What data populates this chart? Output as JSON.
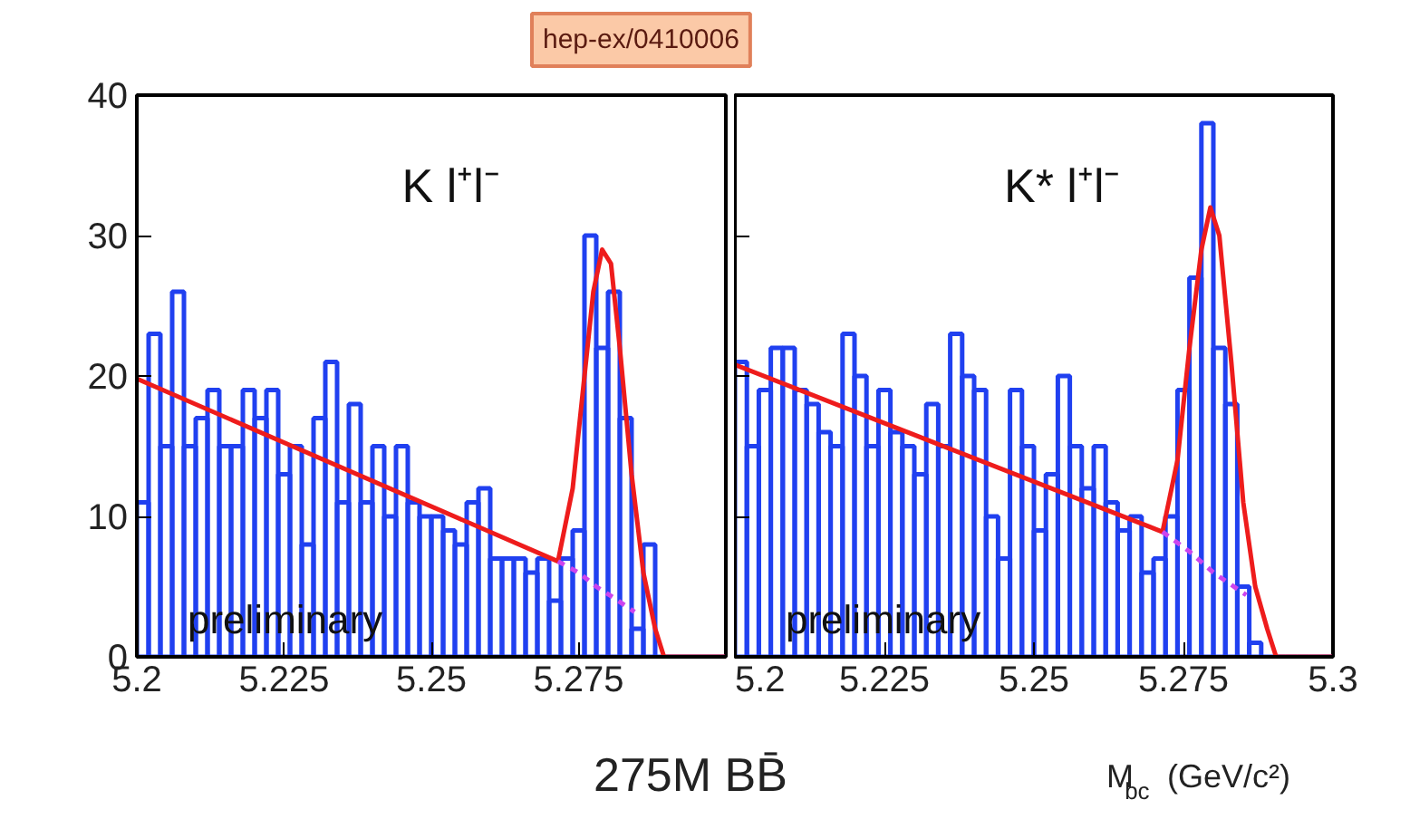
{
  "chart_data": [
    {
      "type": "histogram",
      "title": "K l⁺l⁻",
      "xlabel": "275M BB̄",
      "xlim": [
        5.2,
        5.3
      ],
      "ylim": [
        0,
        40
      ],
      "xticks": [
        5.2,
        5.225,
        5.25,
        5.275,
        {
          "value": 5.3,
          "label": null
        }
      ],
      "yticks": [
        0,
        10,
        20,
        30,
        40
      ],
      "annotations": [
        "preliminary",
        "hep-ex/0410006"
      ],
      "series": [
        {
          "type": "histogram",
          "color": "#2040f0",
          "bins": [
            5.2,
            5.202,
            5.204,
            5.206,
            5.208,
            5.21,
            5.212,
            5.214,
            5.216,
            5.218,
            5.22,
            5.222,
            5.224,
            5.226,
            5.228,
            5.23,
            5.232,
            5.234,
            5.236,
            5.238,
            5.24,
            5.242,
            5.244,
            5.246,
            5.248,
            5.25,
            5.252,
            5.254,
            5.256,
            5.258,
            5.26,
            5.262,
            5.264,
            5.266,
            5.268,
            5.27,
            5.272,
            5.274,
            5.276,
            5.278,
            5.28,
            5.282,
            5.284,
            5.286,
            5.288,
            5.29,
            5.292,
            5.294,
            5.296,
            5.298,
            5.3
          ],
          "values": [
            11,
            23,
            15,
            26,
            15,
            17,
            19,
            15,
            15,
            19,
            17,
            19,
            13,
            15,
            8,
            17,
            21,
            11,
            18,
            11,
            15,
            10,
            15,
            11,
            10,
            10,
            9,
            8,
            11,
            12,
            7,
            7,
            7,
            6,
            7,
            4,
            7,
            9,
            30,
            22,
            26,
            17,
            2,
            8,
            0,
            0,
            0,
            0,
            0,
            0
          ]
        },
        {
          "type": "line",
          "color": "#ee1c1c",
          "x": [
            5.2,
            5.2715,
            5.274,
            5.276,
            5.2775,
            5.279,
            5.2805,
            5.282,
            5.284,
            5.286,
            5.288,
            5.2895,
            5.3
          ],
          "values": [
            19.8,
            6.8,
            12,
            20,
            26,
            29,
            28,
            22,
            13,
            6,
            2,
            0,
            0
          ]
        },
        {
          "type": "line",
          "color": "#cc44ee",
          "line_style": "dashed",
          "x": [
            5.2715,
            5.275,
            5.278,
            5.281,
            5.2845
          ],
          "values": [
            6.8,
            6,
            5,
            4.2,
            3.2
          ]
        }
      ]
    },
    {
      "type": "histogram",
      "title": "K* l⁺l⁻",
      "xlabel": "M$_{bc}$ (GeV/c²)",
      "xlim": [
        5.2,
        5.3
      ],
      "ylim": [
        0,
        40
      ],
      "xticks": [
        5.2,
        5.225,
        5.25,
        5.275,
        5.3
      ],
      "yticks": [
        0,
        10,
        20,
        30,
        40
      ],
      "tick_labels": "x",
      "annotations": [
        "preliminary"
      ],
      "series": [
        {
          "type": "histogram",
          "color": "#2040f0",
          "bins": [
            5.2,
            5.202,
            5.204,
            5.206,
            5.208,
            5.21,
            5.212,
            5.214,
            5.216,
            5.218,
            5.22,
            5.222,
            5.224,
            5.226,
            5.228,
            5.23,
            5.232,
            5.234,
            5.236,
            5.238,
            5.24,
            5.242,
            5.244,
            5.246,
            5.248,
            5.25,
            5.252,
            5.254,
            5.256,
            5.258,
            5.26,
            5.262,
            5.264,
            5.266,
            5.268,
            5.27,
            5.272,
            5.274,
            5.276,
            5.278,
            5.28,
            5.282,
            5.284,
            5.286,
            5.288,
            5.29,
            5.292,
            5.294,
            5.296,
            5.298,
            5.3
          ],
          "values": [
            21,
            15,
            19,
            22,
            22,
            19,
            18,
            16,
            15,
            23,
            20,
            15,
            19,
            16,
            15,
            13,
            18,
            15,
            23,
            20,
            19,
            10,
            7,
            19,
            15,
            9,
            13,
            20,
            15,
            12,
            15,
            11,
            9,
            10,
            6,
            7,
            10,
            19,
            27,
            38,
            22,
            18,
            5,
            1,
            0,
            0,
            0,
            0,
            0,
            0
          ]
        },
        {
          "type": "line",
          "color": "#ee1c1c",
          "x": [
            5.2,
            5.2715,
            5.274,
            5.276,
            5.278,
            5.2795,
            5.281,
            5.283,
            5.285,
            5.287,
            5.289,
            5.2905,
            5.3
          ],
          "values": [
            20.8,
            8.9,
            14,
            22,
            29,
            32,
            30,
            21,
            11,
            5,
            2,
            0,
            0
          ]
        },
        {
          "type": "line",
          "color": "#cc44ee",
          "line_style": "dashed",
          "x": [
            5.2715,
            5.276,
            5.28,
            5.2855
          ],
          "values": [
            8.9,
            7.5,
            6,
            4.4
          ]
        }
      ]
    }
  ]
}
